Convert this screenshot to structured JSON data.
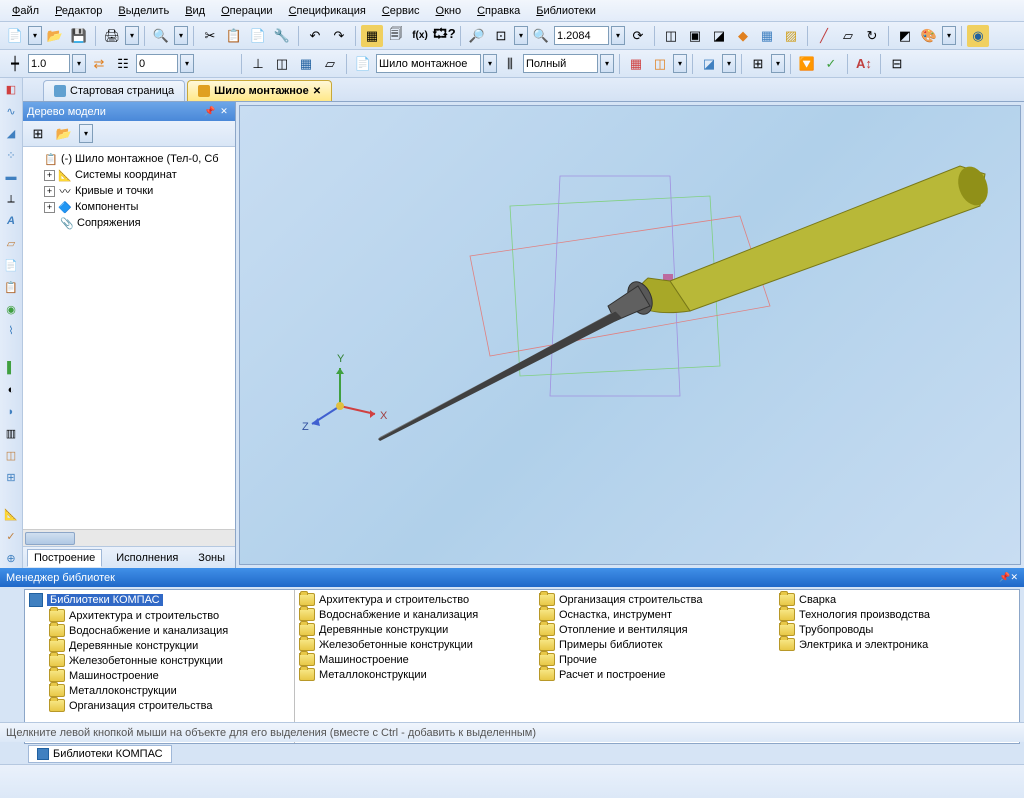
{
  "menu": [
    "Файл",
    "Редактор",
    "Выделить",
    "Вид",
    "Операции",
    "Спецификация",
    "Сервис",
    "Окно",
    "Справка",
    "Библиотеки"
  ],
  "toolbar2": {
    "val1": "1.0",
    "val2": "0",
    "dropdown": "Шило монтажное",
    "style": "Полный"
  },
  "zoom": "1.2084",
  "tabs": [
    {
      "label": "Стартовая страница",
      "active": false
    },
    {
      "label": "Шило монтажное",
      "active": true
    }
  ],
  "treePanel": {
    "title": "Дерево модели"
  },
  "tree": [
    {
      "indent": 0,
      "expander": "",
      "icon": "📋",
      "label": "(-) Шило монтажное (Тел-0, Сб"
    },
    {
      "indent": 1,
      "expander": "+",
      "icon": "📐",
      "label": "Системы координат"
    },
    {
      "indent": 1,
      "expander": "+",
      "icon": "〰",
      "label": "Кривые и точки"
    },
    {
      "indent": 1,
      "expander": "+",
      "icon": "🔷",
      "label": "Компоненты"
    },
    {
      "indent": 1,
      "expander": "",
      "icon": "📎",
      "label": "Сопряжения"
    }
  ],
  "bottomTabs": [
    "Построение",
    "Исполнения",
    "Зоны"
  ],
  "libHeader": "Менеджер библиотек",
  "libRoot": {
    "label": "Библиотеки КОМПАС",
    "selected": true
  },
  "libLeft": [
    "Архитектура и строительство",
    "Водоснабжение и канализация",
    "Деревянные конструкции",
    "Железобетонные конструкции",
    "Машиностроение",
    "Металлоконструкции",
    "Организация строительства"
  ],
  "libCols": [
    [
      "Архитектура и строительство",
      "Водоснабжение и канализация",
      "Деревянные конструкции",
      "Железобетонные конструкции",
      "Машиностроение",
      "Металлоконструкции"
    ],
    [
      "Организация строительства",
      "Оснастка, инструмент",
      "Отопление и вентиляция",
      "Примеры библиотек",
      "Прочие",
      "Расчет и построение"
    ],
    [
      "Сварка",
      "Технология производства",
      "Трубопроводы",
      "Электрика и электроника"
    ]
  ],
  "libTab": "Библиотеки КОМПАС",
  "status": "Щелкните левой кнопкой мыши на объекте для его выделения (вместе с Ctrl - добавить к выделенным)",
  "colors": {
    "handle": "#b8b838",
    "handleDark": "#787818",
    "metal": "#404040",
    "xAxis": "#d04040",
    "yAxis": "#40a040",
    "zAxis": "#4060d0"
  }
}
